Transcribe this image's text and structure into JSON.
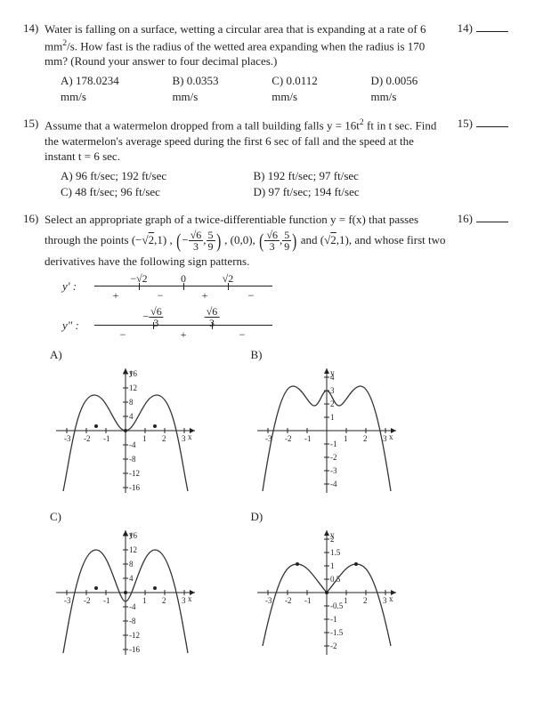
{
  "q14": {
    "num": "14)",
    "text1": "Water is falling on a surface, wetting a circular area that is expanding at a rate of 6 mm",
    "sup1": "2",
    "text2": "/s. How fast is the radius of the wetted area expanding when the radius is 170 mm? (Round your answer to four decimal places.)",
    "mark": "14)",
    "choices": {
      "a": "A) 178.0234 mm/s",
      "b": "B) 0.0353 mm/s",
      "c": "C) 0.0112 mm/s",
      "d": "D) 0.0056 mm/s"
    }
  },
  "q15": {
    "num": "15)",
    "text1": "Assume that a watermelon dropped from a tall building falls y = 16t",
    "sup1": "2",
    "text2": " ft in t sec. Find the watermelon's average speed during the first 6 sec of fall and the speed at the instant t = 6 sec.",
    "mark": "15)",
    "choices": {
      "a": "A) 96 ft/sec;  192 ft/sec",
      "b": "B) 192 ft/sec;  97 ft/sec",
      "c": "C) 48 ft/sec;  96 ft/sec",
      "d": "D) 97 ft/sec;  194 ft/sec"
    }
  },
  "q16": {
    "num": "16)",
    "text1": "Select an appropriate graph of a twice-differentiable function y = f(x) that passes through the points (−",
    "pt1r": "2",
    "text2": ",1) ,",
    "p2a": "6",
    "p2b": "3",
    "p2c": "5",
    "p2d": "9",
    "text3": ", (0,0),",
    "p3a": "6",
    "p3b": "3",
    "p3c": "5",
    "p3d": "9",
    "text4": " and (",
    "pt5r": "2",
    "text5": ",1), and whose first two derivatives have the following sign patterns.",
    "mark": "16)",
    "yprime": "y' :",
    "ydprime": "y\" :",
    "signs": {
      "row1": {
        "plus": "+",
        "minus": "−",
        "m1": "2",
        "m2": "0",
        "m3": "2"
      },
      "row2": {
        "plus": "+",
        "minus": "−",
        "m1": "6",
        "m1d": "3",
        "m2": "6",
        "m2d": "3"
      }
    },
    "graphs": {
      "a": "A)",
      "b": "B)",
      "c": "C)",
      "d": "D)",
      "axis_y": "y",
      "axis_x": "x",
      "A_yticks": [
        16,
        12,
        8,
        4,
        -4,
        -8,
        -12,
        -16
      ],
      "A_xticks": [
        -3,
        -2,
        -1,
        1,
        2,
        3
      ],
      "B_yticks": [
        4,
        3,
        2,
        1,
        -1,
        -2,
        -3,
        -4
      ],
      "B_xticks": [
        -3,
        -2,
        -1,
        1,
        2,
        3
      ],
      "C_yticks": [
        16,
        12,
        8,
        4,
        -4,
        -8,
        -12,
        -16
      ],
      "C_xticks": [
        -3,
        -2,
        -1,
        1,
        2,
        3
      ],
      "D_yticks": [
        2,
        "1.5",
        1,
        "0.5",
        "-0.5",
        -1,
        "-1.5",
        -2
      ],
      "D_xticks": [
        -3,
        -2,
        -1,
        1,
        2,
        3
      ],
      "colors": {
        "axis": "#222222",
        "curve": "#333333",
        "bg": "#ffffff"
      }
    }
  }
}
